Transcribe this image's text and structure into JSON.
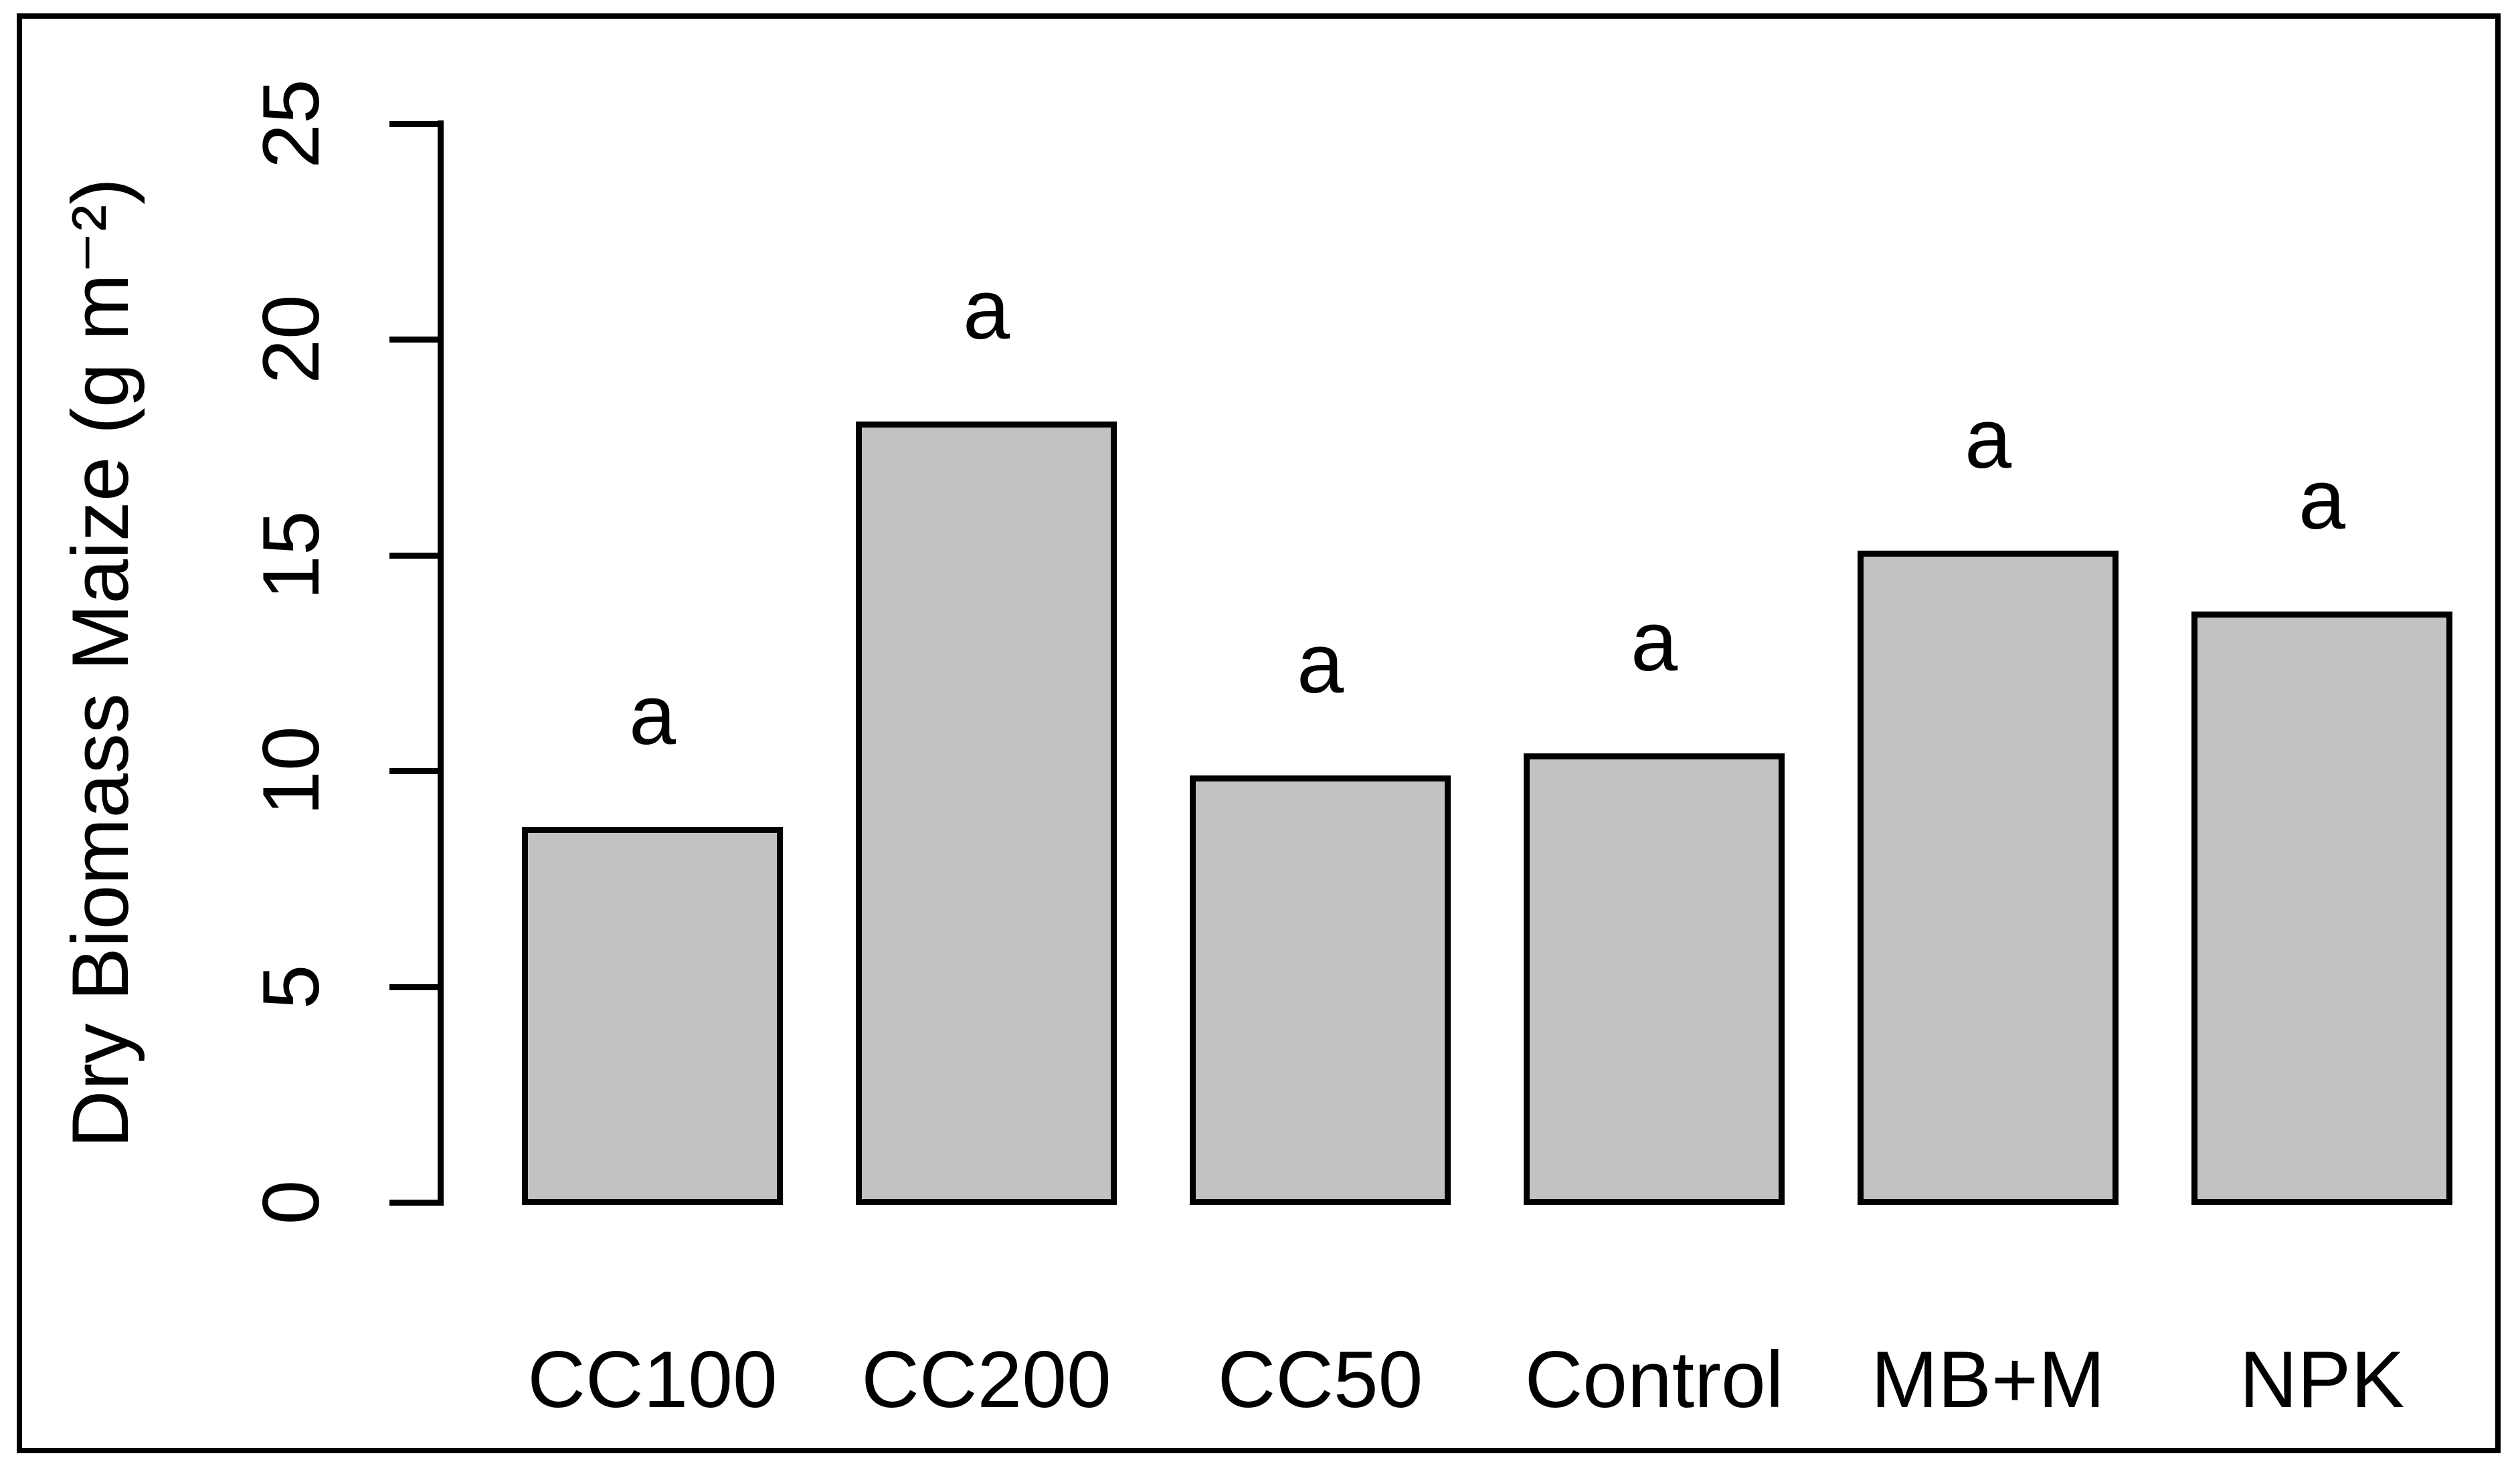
{
  "figure": {
    "kind": "r-style-barplot",
    "background": "#ffffff",
    "frame_color": "#000000"
  },
  "chart_data": {
    "type": "bar",
    "title": "",
    "xlabel": "",
    "ylabel": "Dry Biomass Maize (g m⁻²)",
    "categories": [
      "CC100",
      "CC200",
      "CC50",
      "Control",
      "MB+M",
      "NPK"
    ],
    "values": [
      8.7,
      18.1,
      9.9,
      10.4,
      15.1,
      13.7
    ],
    "bar_labels": [
      "a",
      "a",
      "a",
      "a",
      "a",
      "a"
    ],
    "ylim": [
      0,
      25
    ],
    "yticks": [
      "0",
      "5",
      "10",
      "15",
      "20",
      "25"
    ],
    "grid": false,
    "legend": "none",
    "bar_fill": "#c2c2c2",
    "bar_border": "#000000",
    "axis_color": "#000000",
    "text_color": "#000000"
  }
}
